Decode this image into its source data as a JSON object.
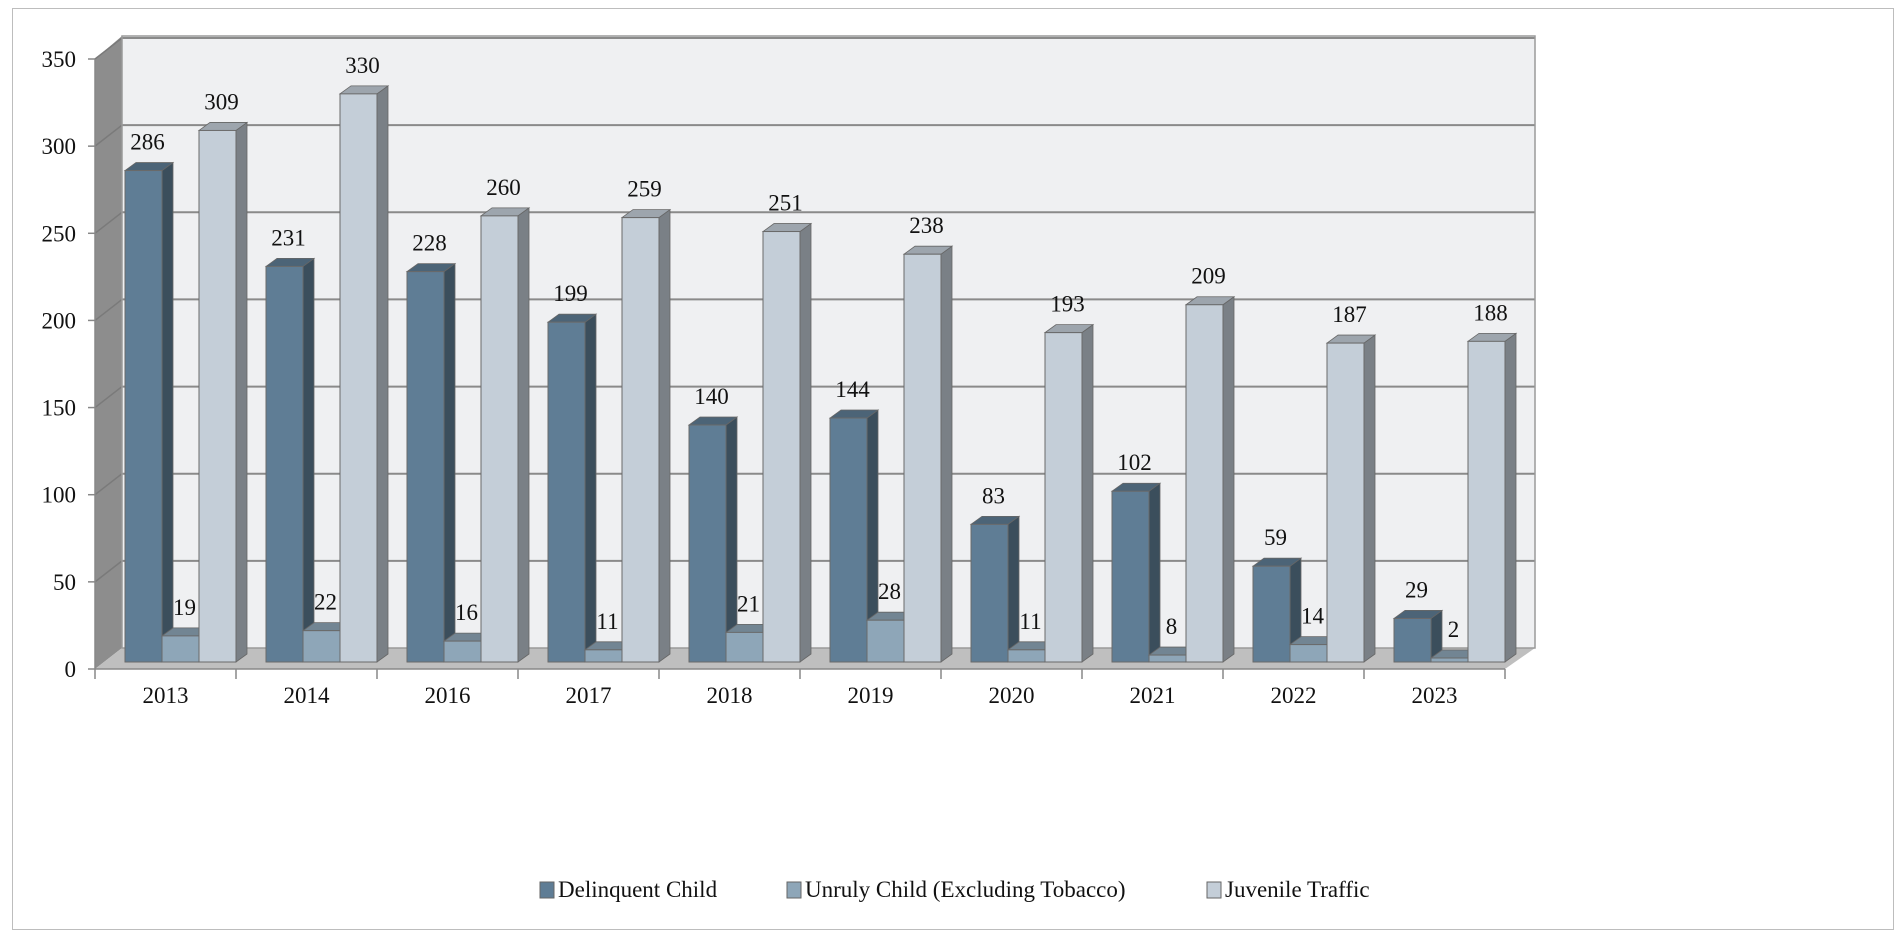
{
  "chart_data": {
    "type": "bar",
    "variant": "3d-clustered-column",
    "title": "",
    "xlabel": "",
    "ylabel": "",
    "ylim": [
      0,
      350
    ],
    "yticks": [
      0,
      50,
      100,
      150,
      200,
      250,
      300,
      350
    ],
    "grid": true,
    "legend_position": "bottom",
    "categories": [
      "2013",
      "2014",
      "2016",
      "2017",
      "2018",
      "2019",
      "2020",
      "2021",
      "2022",
      "2023"
    ],
    "series": [
      {
        "name": "Delinquent Child",
        "color": "#5f7d95",
        "values": [
          286,
          231,
          228,
          199,
          140,
          144,
          83,
          102,
          59,
          29
        ]
      },
      {
        "name": "Unruly Child (Excluding Tobacco)",
        "color": "#8ea6b8",
        "values": [
          19,
          22,
          16,
          11,
          21,
          28,
          11,
          8,
          14,
          2
        ]
      },
      {
        "name": "Juvenile Traffic",
        "color": "#c4ced8",
        "values": [
          309,
          330,
          260,
          259,
          251,
          238,
          193,
          209,
          187,
          188
        ]
      }
    ]
  }
}
